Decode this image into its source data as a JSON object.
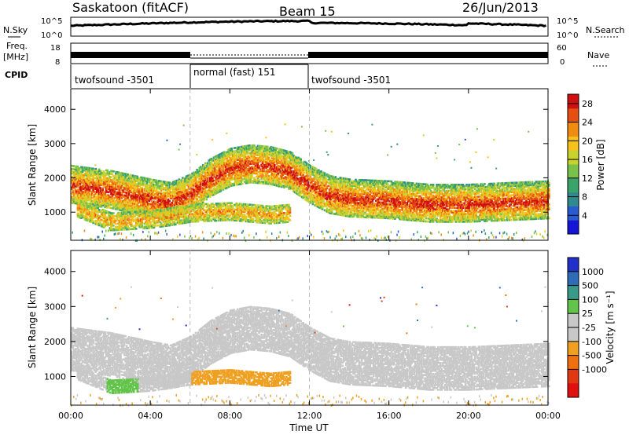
{
  "header": {
    "station": "Saskatoon (fitACF)",
    "beam": "Beam 15",
    "date": "26/Jun/2013"
  },
  "left_labels": {
    "nsky": "N.Sky",
    "freq": "Freq.",
    "freq_unit": "[MHz]",
    "cpid": "CPID"
  },
  "right_labels": {
    "nsearch": "N.Search",
    "nave": "Nave"
  },
  "noise_panel": {
    "left_ticks": [
      "10^5",
      "10^0"
    ],
    "right_ticks": [
      "10^5",
      "10^0"
    ]
  },
  "freq_panel": {
    "left_ticks": [
      "18",
      "8"
    ],
    "right_ticks": [
      "60",
      "0"
    ]
  },
  "cpid_segments": [
    {
      "label": "twofsound -3501",
      "start_hour": 0,
      "end_hour": 6
    },
    {
      "label": "normal (fast) 151",
      "start_hour": 6,
      "end_hour": 12
    },
    {
      "label": "twofsound -3501",
      "start_hour": 12,
      "end_hour": 24
    }
  ],
  "chart_data": [
    {
      "type": "heatmap",
      "panel": "power",
      "xlabel": "Time UT",
      "ylabel": "Slant Range [km]",
      "xlim": [
        0,
        24
      ],
      "ylim": [
        180,
        4600
      ],
      "x_ticks": [
        "00:00",
        "04:00",
        "08:00",
        "12:00",
        "16:00",
        "20:00",
        "00:00"
      ],
      "y_ticks": [
        1000,
        2000,
        3000,
        4000
      ],
      "colorbar": {
        "label": "Power [dB]",
        "ticks": [
          4,
          8,
          12,
          16,
          20,
          24,
          28
        ],
        "range": [
          0,
          30
        ],
        "colors": [
          "#1515d8",
          "#2a5ad0",
          "#2f8a8e",
          "#3aa36a",
          "#79c14a",
          "#c8d22c",
          "#f5c11a",
          "#f08c12",
          "#e35010",
          "#d01010"
        ]
      },
      "bands": [
        {
          "name": "upper",
          "points": [
            [
              0,
              1800
            ],
            [
              2,
              1650
            ],
            [
              4,
              1400
            ],
            [
              5,
              1300
            ],
            [
              6,
              1550
            ],
            [
              7,
              2000
            ],
            [
              8,
              2300
            ],
            [
              9,
              2400
            ],
            [
              10,
              2350
            ],
            [
              11,
              2200
            ],
            [
              12,
              1800
            ],
            [
              13,
              1500
            ],
            [
              14,
              1400
            ],
            [
              16,
              1350
            ],
            [
              18,
              1250
            ],
            [
              20,
              1250
            ],
            [
              22,
              1300
            ],
            [
              24,
              1350
            ]
          ],
          "power_db": 22
        },
        {
          "name": "lower",
          "points": [
            [
              0.3,
              1150
            ],
            [
              2,
              750
            ],
            [
              4,
              820
            ],
            [
              5,
              900
            ],
            [
              6,
              1000
            ],
            [
              8,
              1050
            ],
            [
              10,
              950
            ],
            [
              11,
              1000
            ]
          ],
          "power_db": 18
        }
      ]
    },
    {
      "type": "heatmap",
      "panel": "velocity",
      "xlabel": "Time UT",
      "ylabel": "Slant Range [km]",
      "xlim": [
        0,
        24
      ],
      "ylim": [
        180,
        4600
      ],
      "x_ticks": [
        "00:00",
        "04:00",
        "08:00",
        "12:00",
        "16:00",
        "20:00",
        "00:00"
      ],
      "y_ticks": [
        1000,
        2000,
        3000,
        4000
      ],
      "colorbar": {
        "label": "Velocity [m s⁻¹]",
        "ticks": [
          "1000",
          "500",
          "100",
          "25",
          "-25",
          "-100",
          "-500",
          "-1000"
        ],
        "colors": [
          "#2030c8",
          "#2f6cb8",
          "#3a9a8a",
          "#62c44a",
          "#c8c8c8",
          "#c8c8c8",
          "#f0a020",
          "#f07010",
          "#e03810",
          "#e01010"
        ]
      },
      "regions": [
        {
          "desc": "ground",
          "velocity": 0
        },
        {
          "desc": "green patch",
          "time": [
            1.8,
            3.4
          ],
          "range": [
            650,
            900
          ],
          "velocity": 150
        },
        {
          "desc": "orange patch",
          "time": [
            6.0,
            11.2
          ],
          "range": [
            800,
            1250
          ],
          "velocity": -200
        }
      ]
    }
  ],
  "time_axis_label": "Time UT"
}
